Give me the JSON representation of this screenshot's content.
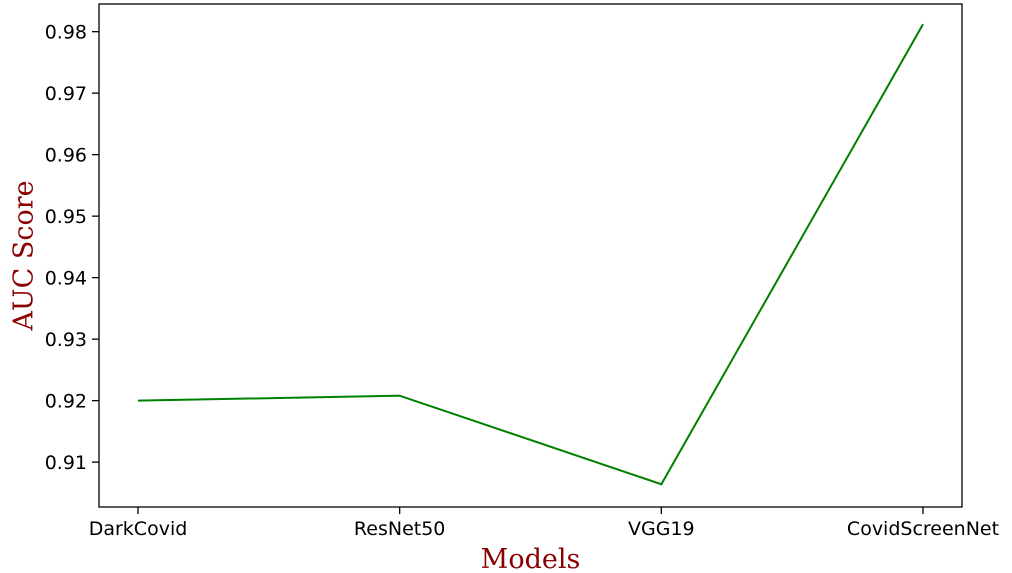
{
  "chart_data": {
    "type": "line",
    "title": "",
    "xlabel": "Models",
    "ylabel": "AUC Score",
    "categories": [
      "DarkCovid",
      "ResNet50",
      "VGG19",
      "CovidScreenNet"
    ],
    "series": [
      {
        "values": [
          0.92,
          0.9208,
          0.9064,
          0.9812
        ]
      }
    ],
    "ylim": [
      0.9027,
      0.9845
    ],
    "yticks": [
      0.91,
      0.92,
      0.93,
      0.94,
      0.95,
      0.96,
      0.97,
      0.98
    ],
    "ytick_labels": [
      "0.91",
      "0.92",
      "0.93",
      "0.94",
      "0.95",
      "0.96",
      "0.97",
      "0.98"
    ],
    "grid": false,
    "legend": "none",
    "colors": {
      "line": "#008000",
      "axis_title": "#8b0000",
      "axes": "#000000"
    }
  }
}
